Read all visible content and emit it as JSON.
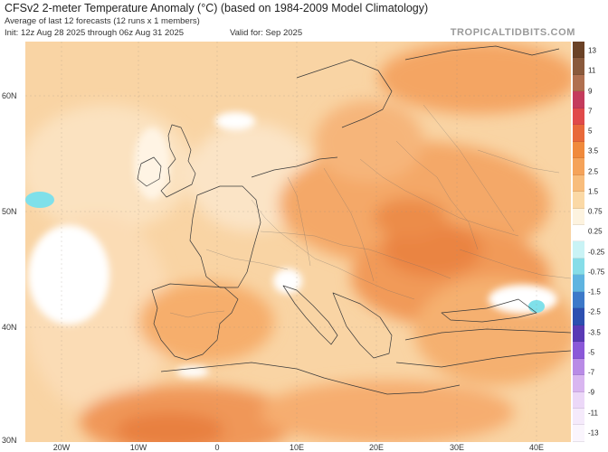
{
  "header": {
    "title": "CFSv2 2-meter Temperature Anomaly (°C) (based on 1984-2009 Model Climatology)",
    "subtitle": "Average of last 12 forecasts (12 runs x 1 members)",
    "init": "Init: 12z Aug 28 2025 through 06z Aug 31 2025",
    "valid": "Valid for: Sep 2025",
    "logo": "TROPICALTIDBITS.COM"
  },
  "axes": {
    "lat_labels": [
      "60N",
      "50N",
      "40N",
      "30N"
    ],
    "lon_labels": [
      "20W",
      "10W",
      "0",
      "10E",
      "20E",
      "30E",
      "40E"
    ]
  },
  "colorbar": {
    "labels": [
      "13",
      "11",
      "9",
      "7",
      "5",
      "3.5",
      "2.5",
      "1.5",
      "0.75",
      "0.25",
      "-0.25",
      "-0.75",
      "-1.5",
      "-2.5",
      "-3.5",
      "-5",
      "-7",
      "-9",
      "-11",
      "-13"
    ],
    "swatches": [
      "#6b4226",
      "#8a5a3c",
      "#b07050",
      "#c43b5c",
      "#e04a4a",
      "#e8693a",
      "#f08a3c",
      "#f5a35a",
      "#f8bd7c",
      "#fbd9a6",
      "#fdf3df",
      "#ffffff",
      "#c9f3f5",
      "#86dde8",
      "#5fb4e0",
      "#3d79c9",
      "#2d4fb0",
      "#5a3ab5",
      "#8b58d8",
      "#b98be6",
      "#d9b6f0",
      "#ecd8f8",
      "#f5eafb",
      "#faf5fd"
    ]
  },
  "map_colors": {
    "ocean_base": "#f9d4a4",
    "warm_light": "#fbe2c0",
    "warm_mid": "#f6b577",
    "warm_strong": "#ef9550",
    "hot": "#e87a3c",
    "neutral": "#ffffff",
    "cool": "#7fe0ea"
  }
}
